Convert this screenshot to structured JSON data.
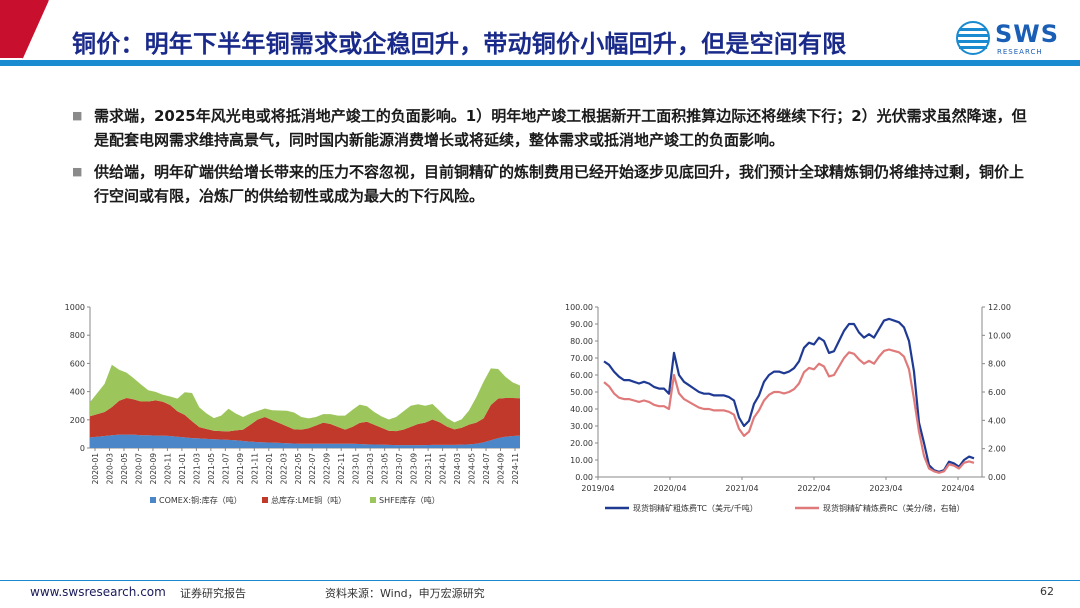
{
  "header": {
    "title": "铜价：明年下半年铜需求或企稳回升，带动铜价小幅回升，但是空间有限",
    "logo_text": "SWS",
    "logo_sub": "RESEARCH",
    "accent_red": "#c8102e",
    "title_color": "#1a2a8a"
  },
  "bullets": [
    "需求端，2025年风光电或将抵消地产竣工的负面影响。1）明年地产竣工根据新开工面积推算边际还将继续下行；2）光伏需求虽然降速，但是配套电网需求维持高景气，同时国内新能源消费增长或将延续，整体需求或抵消地产竣工的负面影响。",
    "供给端，明年矿端供给增长带来的压力不容忽视，目前铜精矿的炼制费用已经开始逐步见底回升，我们预计全球精炼铜仍将维持过剩，铜价上行空间或有限，冶炼厂的供给韧性或成为最大的下行风险。"
  ],
  "chart_data": [
    {
      "type": "area",
      "stacked": true,
      "y_ticks": [
        "0",
        "200",
        "400",
        "600",
        "800",
        "1000"
      ],
      "ylim": [
        0,
        1000
      ],
      "x_ticks": [
        "2020-01",
        "2020-03",
        "2020-05",
        "2020-07",
        "2020-09",
        "2020-11",
        "2021-01",
        "2021-03",
        "2021-05",
        "2021-07",
        "2021-09",
        "2021-11",
        "2022-01",
        "2022-03",
        "2022-05",
        "2022-07",
        "2022-09",
        "2022-11",
        "2023-01",
        "2023-03",
        "2023-05",
        "2023-07",
        "2023-09",
        "2023-11",
        "2024-01",
        "2024-03",
        "2024-05",
        "2024-07",
        "2024-09",
        "2024-11"
      ],
      "series": [
        {
          "name": "COMEX:铜:库存（吨）",
          "color": "#4a86c8",
          "values": [
            75,
            80,
            85,
            90,
            95,
            95,
            95,
            90,
            90,
            88,
            88,
            85,
            80,
            75,
            70,
            68,
            65,
            62,
            60,
            58,
            55,
            50,
            45,
            42,
            40,
            38,
            36,
            34,
            32,
            30,
            30,
            30,
            30,
            30,
            30,
            30,
            30,
            28,
            26,
            25,
            24,
            22,
            20,
            20,
            20,
            20,
            20,
            22,
            22,
            22,
            22,
            24,
            26,
            30,
            40,
            55,
            70,
            80,
            85,
            88
          ]
        },
        {
          "name": "总库存:LME铜（吨）",
          "color": "#c0392b",
          "values": [
            150,
            160,
            170,
            200,
            240,
            260,
            250,
            240,
            240,
            250,
            240,
            220,
            180,
            160,
            120,
            80,
            70,
            60,
            60,
            60,
            70,
            80,
            120,
            160,
            180,
            160,
            140,
            120,
            100,
            100,
            110,
            130,
            150,
            140,
            120,
            100,
            120,
            150,
            160,
            140,
            120,
            100,
            100,
            110,
            130,
            150,
            160,
            180,
            160,
            130,
            110,
            120,
            140,
            150,
            170,
            250,
            280,
            275,
            270,
            265
          ]
        },
        {
          "name": "SHFE库存（吨）",
          "color": "#9cc65b",
          "values": [
            100,
            150,
            200,
            300,
            220,
            180,
            150,
            120,
            80,
            60,
            50,
            60,
            90,
            160,
            200,
            140,
            110,
            90,
            110,
            160,
            120,
            90,
            80,
            60,
            60,
            70,
            90,
            110,
            120,
            90,
            70,
            60,
            60,
            70,
            80,
            100,
            120,
            130,
            110,
            90,
            80,
            80,
            100,
            130,
            150,
            140,
            120,
            110,
            80,
            60,
            50,
            60,
            100,
            180,
            260,
            260,
            210,
            150,
            110,
            90
          ]
        }
      ]
    },
    {
      "type": "line",
      "y_left_ticks": [
        "0.00",
        "10.00",
        "20.00",
        "30.00",
        "40.00",
        "50.00",
        "60.00",
        "70.00",
        "80.00",
        "90.00",
        "100.00"
      ],
      "y_right_ticks": [
        "0.00",
        "2.00",
        "4.00",
        "6.00",
        "8.00",
        "10.00",
        "12.00"
      ],
      "ylim_left": [
        0,
        100
      ],
      "ylim_right": [
        0,
        12
      ],
      "x_ticks": [
        "2019/04",
        "2020/04",
        "2021/04",
        "2022/04",
        "2023/04",
        "2024/04"
      ],
      "series": [
        {
          "name": "现货铜精矿粗炼费TC（美元/千吨）",
          "color": "#1f3a93",
          "axis": "left",
          "values": [
            68,
            66,
            62,
            59,
            57,
            57,
            56,
            55,
            56,
            55,
            53,
            52,
            52,
            49,
            73,
            60,
            56,
            54,
            52,
            50,
            49,
            49,
            48,
            48,
            48,
            47,
            45,
            35,
            30,
            33,
            43,
            48,
            56,
            60,
            62,
            62,
            61,
            62,
            64,
            68,
            76,
            79,
            78,
            82,
            80,
            73,
            74,
            80,
            86,
            90,
            90,
            85,
            82,
            84,
            82,
            87,
            92,
            93,
            92,
            91,
            88,
            80,
            62,
            32,
            20,
            7,
            4,
            3,
            4,
            9,
            8,
            6,
            10,
            12,
            11
          ]
        },
        {
          "name": "现货铜精矿精炼费RC（美分/磅，右轴）",
          "color": "#e07a7a",
          "axis": "right",
          "values": [
            6.7,
            6.4,
            5.9,
            5.6,
            5.5,
            5.5,
            5.4,
            5.3,
            5.4,
            5.3,
            5.1,
            5.0,
            5.0,
            4.8,
            7.2,
            5.9,
            5.5,
            5.3,
            5.1,
            4.9,
            4.8,
            4.8,
            4.7,
            4.7,
            4.7,
            4.6,
            4.4,
            3.4,
            2.9,
            3.2,
            4.2,
            4.7,
            5.4,
            5.8,
            6.0,
            6.0,
            5.9,
            6.0,
            6.2,
            6.6,
            7.4,
            7.7,
            7.6,
            8.0,
            7.8,
            7.1,
            7.2,
            7.8,
            8.4,
            8.8,
            8.7,
            8.3,
            8.0,
            8.2,
            8.0,
            8.5,
            8.9,
            9.0,
            8.9,
            8.8,
            8.5,
            7.6,
            5.5,
            3.2,
            1.5,
            0.6,
            0.4,
            0.3,
            0.4,
            0.9,
            0.8,
            0.6,
            1.0,
            1.1,
            1.0
          ]
        }
      ]
    }
  ],
  "footer": {
    "website": "www.swsresearch.com",
    "report_type": "证券研究报告",
    "source": "资料来源：Wind，申万宏源研究",
    "page_number": "62"
  }
}
